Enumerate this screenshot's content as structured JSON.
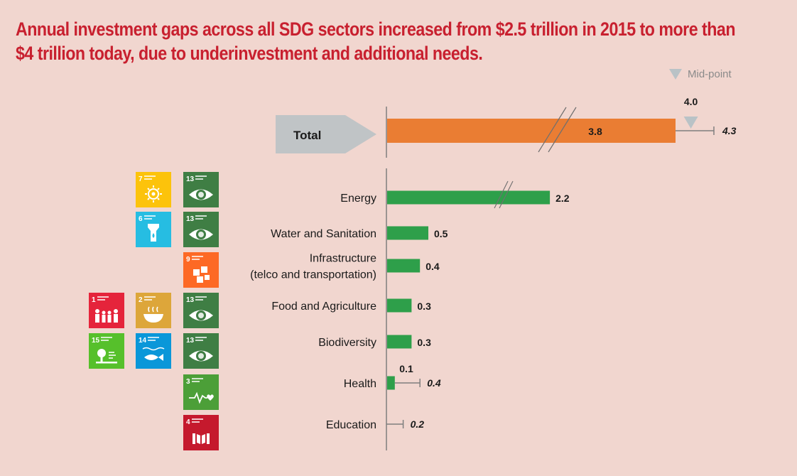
{
  "title_lines": [
    "Annual investment gaps across all SDG sectors increased from $2.5 trillion in 2015 to more than",
    "$4 trillion today, due to underinvestment and additional needs."
  ],
  "legend": {
    "midpoint_label": "Mid-point",
    "marker_color": "#b9c2c6"
  },
  "colors": {
    "title": "#c8202f",
    "total_bar": "#ea7d33",
    "sector_bar": "#2e9f4a",
    "range_line": "#7f7f7f",
    "total_arrow": "#c0c4c6"
  },
  "chart_data": {
    "type": "bar",
    "orientation": "horizontal",
    "axis_break": true,
    "total": {
      "label": "Total",
      "value": 3.8,
      "value_label": "3.8",
      "range_high": 4.3,
      "range_high_label": "4.3",
      "midpoint": 4.0,
      "midpoint_label": "4.0"
    },
    "categories": [
      "Energy",
      "Water and Sanitation",
      "Infrastructure\n(telco and transportation)",
      "Food and Agriculture",
      "Biodiversity",
      "Health",
      "Education"
    ],
    "values": [
      2.2,
      0.5,
      0.4,
      0.3,
      0.3,
      0.1,
      null
    ],
    "value_labels": [
      "2.2",
      "0.5",
      "0.4",
      "0.3",
      "0.3",
      "0.1",
      ""
    ],
    "range_high": [
      null,
      null,
      null,
      null,
      null,
      0.4,
      0.2
    ],
    "range_high_labels": [
      "",
      "",
      "",
      "",
      "",
      "0.4",
      "0.2"
    ],
    "broken_bars": [
      true,
      false,
      false,
      false,
      false,
      false,
      false
    ]
  },
  "sdg_icons": [
    {
      "row": 0,
      "col": 1,
      "number": "7",
      "color": "#fcc30b",
      "icon": "sun-icon"
    },
    {
      "row": 0,
      "col": 2,
      "number": "13",
      "color": "#3f7e44",
      "icon": "eye-globe-icon"
    },
    {
      "row": 1,
      "col": 1,
      "number": "6",
      "color": "#26bde2",
      "icon": "water-drop-icon"
    },
    {
      "row": 1,
      "col": 2,
      "number": "13",
      "color": "#3f7e44",
      "icon": "eye-globe-icon"
    },
    {
      "row": 2,
      "col": 2,
      "number": "9",
      "color": "#fd6925",
      "icon": "cubes-icon"
    },
    {
      "row": 3,
      "col": 0,
      "number": "1",
      "color": "#e5243b",
      "icon": "family-icon"
    },
    {
      "row": 3,
      "col": 1,
      "number": "2",
      "color": "#dda63a",
      "icon": "bowl-icon"
    },
    {
      "row": 3,
      "col": 2,
      "number": "13",
      "color": "#3f7e44",
      "icon": "eye-globe-icon"
    },
    {
      "row": 4,
      "col": 0,
      "number": "15",
      "color": "#56c02b",
      "icon": "tree-icon"
    },
    {
      "row": 4,
      "col": 1,
      "number": "14",
      "color": "#0a97d9",
      "icon": "fish-icon"
    },
    {
      "row": 4,
      "col": 2,
      "number": "13",
      "color": "#3f7e44",
      "icon": "eye-globe-icon"
    },
    {
      "row": 5,
      "col": 2,
      "number": "3",
      "color": "#4c9f38",
      "icon": "heartbeat-icon"
    },
    {
      "row": 6,
      "col": 2,
      "number": "4",
      "color": "#c5192d",
      "icon": "book-icon"
    }
  ]
}
